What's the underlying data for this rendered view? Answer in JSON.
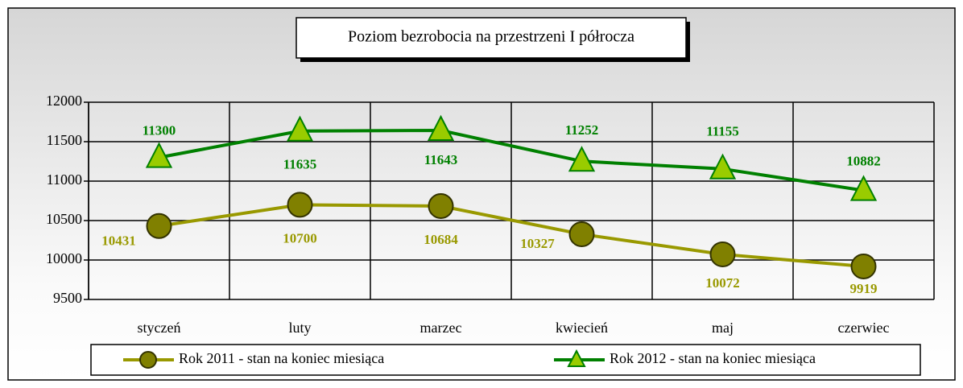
{
  "chart_data": {
    "type": "line",
    "title": "Poziom bezrobocia na przestrzeni I półrocza",
    "categories": [
      "styczeń",
      "luty",
      "marzec",
      "kwiecień",
      "maj",
      "czerwiec"
    ],
    "series": [
      {
        "name": "Rok 2011 - stan na koniec miesiąca",
        "color": "#999900",
        "marker": "circle",
        "values": [
          10431,
          10700,
          10684,
          10327,
          10072,
          9919
        ]
      },
      {
        "name": "Rok 2012 - stan na koniec miesiąca",
        "color": "#008000",
        "marker": "triangle",
        "values": [
          11300,
          11635,
          11643,
          11252,
          11155,
          10882
        ]
      }
    ],
    "ylim": [
      9500,
      12000
    ],
    "yticks": [
      9500,
      10000,
      10500,
      11000,
      11500,
      12000
    ],
    "grid": true,
    "legend": "bottom"
  }
}
